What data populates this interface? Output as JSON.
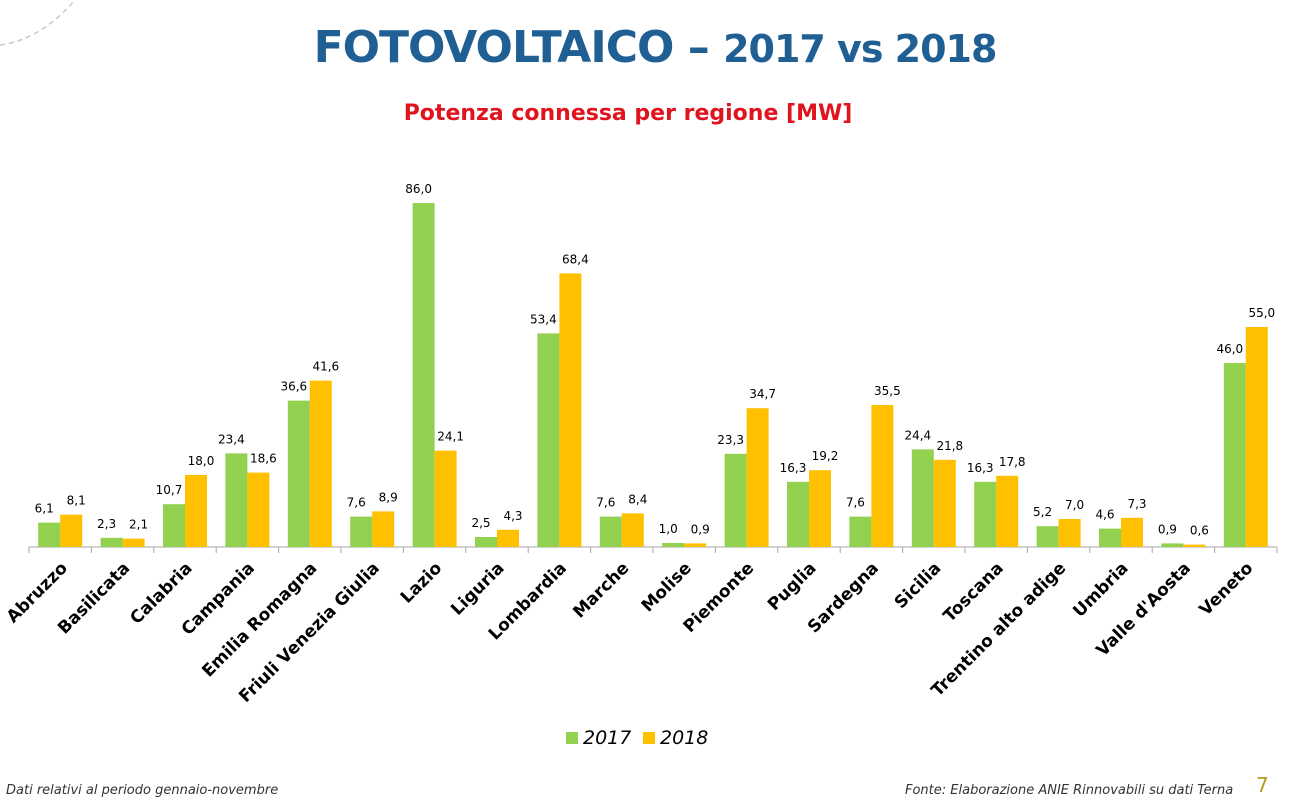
{
  "slide": {
    "title_main": "FOTOVOLTAICO –",
    "title_years": "2017 vs 2018",
    "subtitle": "Potenza connessa per regione [MW]",
    "footer_left": "Dati relativi al periodo gennaio-novembre",
    "footer_right": "Fonte: Elaborazione ANIE Rinnovabili su dati Terna",
    "page_number": "7"
  },
  "chart_data": {
    "type": "bar",
    "title": "Potenza connessa per regione [MW]",
    "categories": [
      "Abruzzo",
      "Basilicata",
      "Calabria",
      "Campania",
      "Emilia Romagna",
      "Friuli Venezia Giulia",
      "Lazio",
      "Liguria",
      "Lombardia",
      "Marche",
      "Molise",
      "Piemonte",
      "Puglia",
      "Sardegna",
      "Sicilia",
      "Toscana",
      "Trentino alto adige",
      "Umbria",
      "Valle d'Aosta",
      "Veneto"
    ],
    "series": [
      {
        "name": "2017",
        "color": "#92d050",
        "values": [
          6.1,
          2.3,
          10.7,
          23.4,
          36.6,
          7.6,
          86.0,
          2.5,
          53.4,
          7.6,
          1.0,
          23.3,
          16.3,
          7.6,
          24.4,
          16.3,
          5.2,
          4.6,
          0.9,
          46.0
        ],
        "labels": [
          "6,1",
          "2,3",
          "10,7",
          "23,4",
          "36,6",
          "7,6",
          "86,0",
          "2,5",
          "53,4",
          "7,6",
          "1,0",
          "23,3",
          "16,3",
          "7,6",
          "24,4",
          "16,3",
          "5,2",
          "4,6",
          "0,9",
          "46,0"
        ]
      },
      {
        "name": "2018",
        "color": "#ffc000",
        "values": [
          8.1,
          2.1,
          18.0,
          18.6,
          41.6,
          8.9,
          24.1,
          4.3,
          68.4,
          8.4,
          0.9,
          34.7,
          19.2,
          35.5,
          21.8,
          17.8,
          7.0,
          7.3,
          0.6,
          55.0
        ],
        "labels": [
          "8,1",
          "2,1",
          "18,0",
          "18,6",
          "41,6",
          "8,9",
          "24,1",
          "4,3",
          "68,4",
          "8,4",
          "0,9",
          "34,7",
          "19,2",
          "35,5",
          "21,8",
          "17,8",
          "7,0",
          "7,3",
          "0,6",
          "55,0"
        ]
      }
    ],
    "ylim": [
      0,
      86.0
    ],
    "grid": false,
    "legend": "bottom-center"
  }
}
